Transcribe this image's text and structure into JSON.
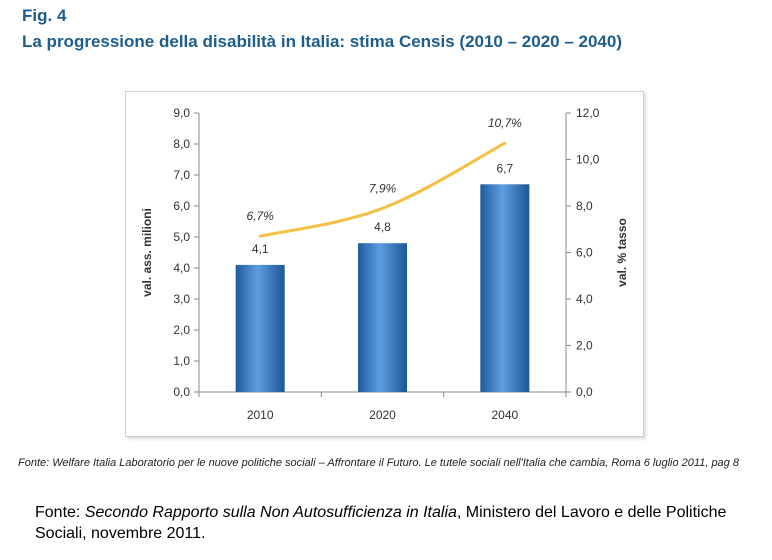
{
  "figure": {
    "label": "Fig. 4",
    "title": "La progressione della disabilità in Italia: stima Censis (2010 – 2020 – 2040)"
  },
  "chart_data": {
    "type": "bar",
    "categories": [
      "2010",
      "2020",
      "2040"
    ],
    "series": [
      {
        "kind": "bar",
        "axis": "left",
        "values": [
          4.1,
          4.8,
          6.7
        ],
        "data_labels": [
          "4,1",
          "4,8",
          "6,7"
        ],
        "color": "#3e7fc4"
      },
      {
        "kind": "line",
        "axis": "right",
        "values": [
          6.7,
          7.9,
          10.7
        ],
        "data_labels": [
          "6,7%",
          "7,9%",
          "10,7%"
        ],
        "color": "#f5c043"
      }
    ],
    "ylabel": "val. ass. milioni",
    "y2label": "val. % tasso",
    "ylim": [
      0,
      9
    ],
    "y2lim": [
      0,
      12
    ],
    "yticks": [
      "0,0",
      "1,0",
      "2,0",
      "3,0",
      "4,0",
      "5,0",
      "6,0",
      "7,0",
      "8,0",
      "9,0"
    ],
    "y2ticks": [
      "0,0",
      "2,0",
      "4,0",
      "6,0",
      "8,0",
      "10,0",
      "12,0"
    ],
    "grid": false,
    "legend": "none"
  },
  "source_small": "Fonte: Welfare Italia Laboratorio per le nuove politiche sociali – Affrontare il Futuro. Le tutele sociali nell'Italia che cambia, Roma 6 luglio 2011, pag 8",
  "source_main": {
    "prefix": "Fonte: ",
    "title": "Secondo Rapporto sulla Non Autosufficienza in Italia",
    "suffix": ", Ministero del Lavoro e delle Politiche Sociali, novembre 2011."
  }
}
